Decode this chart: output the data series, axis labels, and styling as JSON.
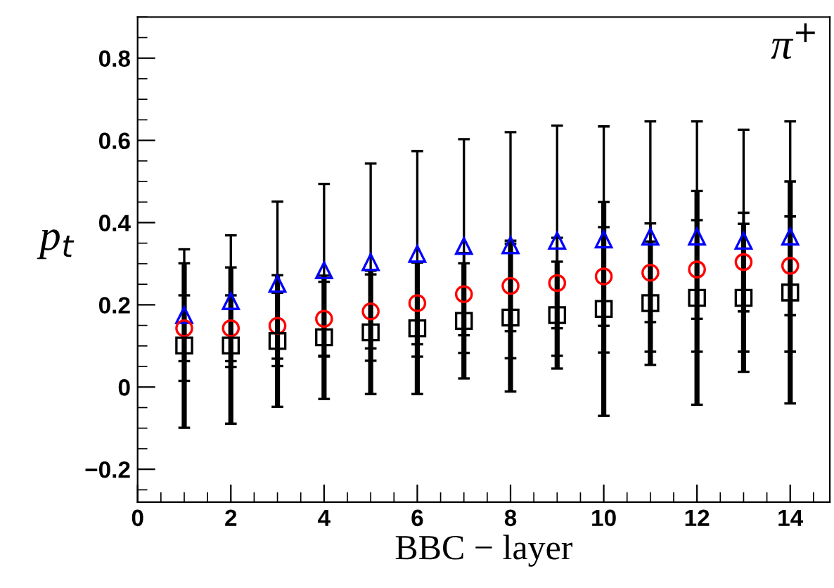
{
  "chart_data": {
    "type": "scatter",
    "xlabel": "BBC − layer",
    "ylabel": "p$_{t}$",
    "annotations": [
      "π$^{+}$"
    ],
    "x": [
      1,
      2,
      3,
      4,
      5,
      6,
      7,
      8,
      9,
      10,
      11,
      12,
      13,
      14
    ],
    "xlim": [
      0,
      14.85
    ],
    "xticks": [
      0,
      2,
      4,
      6,
      8,
      10,
      12,
      14
    ],
    "ylim": [
      -0.28,
      0.9
    ],
    "yticks": [
      {
        "value": -0.2,
        "label": "−0.2"
      },
      0,
      0.2,
      0.4,
      0.6,
      0.8
    ],
    "grid": false,
    "legend": false,
    "series": [
      {
        "color": "#0000ff",
        "marker": "triangle",
        "values": [
          0.175,
          0.209,
          0.251,
          0.284,
          0.304,
          0.324,
          0.343,
          0.345,
          0.356,
          0.359,
          0.366,
          0.366,
          0.356,
          0.366
        ],
        "errors": [
          0.16,
          0.16,
          0.2,
          0.21,
          0.24,
          0.25,
          0.26,
          0.275,
          0.28,
          0.275,
          0.28,
          0.28,
          0.27,
          0.28
        ]
      },
      {
        "color": "#ff0000",
        "marker": "circle",
        "values": [
          0.143,
          0.143,
          0.149,
          0.166,
          0.184,
          0.204,
          0.226,
          0.246,
          0.253,
          0.269,
          0.278,
          0.286,
          0.304,
          0.295
        ],
        "errors": [
          0.08,
          0.08,
          0.08,
          0.09,
          0.09,
          0.1,
          0.1,
          0.11,
          0.11,
          0.12,
          0.12,
          0.12,
          0.12,
          0.12
        ]
      },
      {
        "color": "#000000",
        "marker": "square",
        "values": [
          0.101,
          0.101,
          0.112,
          0.121,
          0.133,
          0.143,
          0.161,
          0.169,
          0.175,
          0.19,
          0.204,
          0.217,
          0.217,
          0.23
        ],
        "errors": [
          0.2,
          0.19,
          0.16,
          0.15,
          0.15,
          0.16,
          0.14,
          0.18,
          0.13,
          0.26,
          0.15,
          0.26,
          0.18,
          0.27
        ]
      }
    ]
  }
}
